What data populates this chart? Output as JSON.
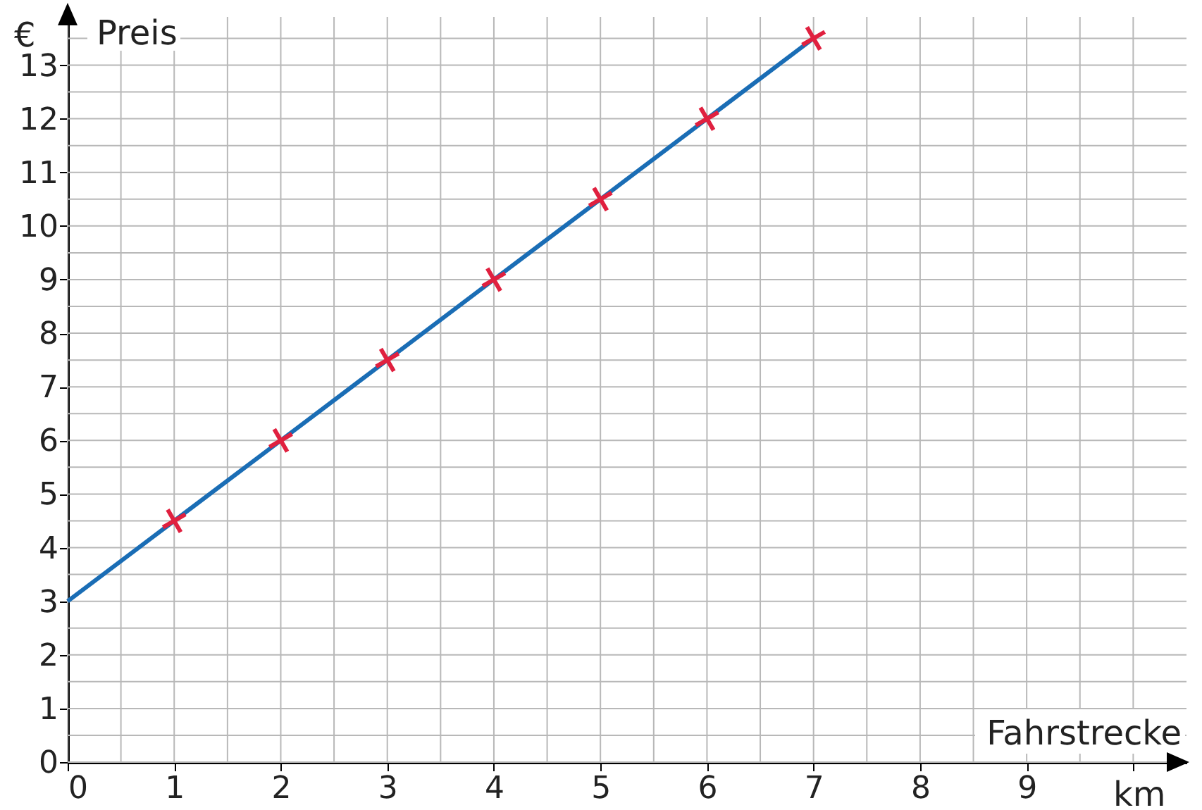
{
  "chart_data": {
    "type": "line",
    "xlabel": "Fahrstrecke",
    "ylabel": "Preis",
    "annotations": [
      "€",
      "km"
    ],
    "series": [
      {
        "color": "#1a6db5",
        "marker": "none",
        "x": [
          0,
          1,
          2,
          3,
          4,
          5,
          6,
          7
        ],
        "values": [
          3,
          4.5,
          6,
          7.5,
          9,
          10.5,
          12,
          13.5
        ]
      },
      {
        "type": "scatter",
        "color": "#e0203f",
        "marker": "cross",
        "x": [
          1,
          2,
          3,
          4,
          5,
          6,
          7
        ],
        "values": [
          4.5,
          6,
          7.5,
          9,
          10.5,
          12,
          13.5
        ]
      }
    ],
    "xlim": [
      0,
      10.5
    ],
    "ylim": [
      0,
      13.9
    ],
    "xticks": [
      0,
      {
        "value": 0.5,
        "label": null
      },
      1,
      {
        "value": 1.5,
        "label": null
      },
      2,
      {
        "value": 2.5,
        "label": null
      },
      3,
      {
        "value": 3.5,
        "label": null
      },
      4,
      {
        "value": 4.5,
        "label": null
      },
      5,
      {
        "value": 5.5,
        "label": null
      },
      6,
      {
        "value": 6.5,
        "label": null
      },
      7,
      {
        "value": 7.5,
        "label": null
      },
      8,
      {
        "value": 8.5,
        "label": null
      },
      9,
      {
        "value": 9.5,
        "label": null
      },
      {
        "value": 10,
        "label": null
      }
    ],
    "yticks": [
      0,
      {
        "value": 0.5,
        "label": null
      },
      1,
      {
        "value": 1.5,
        "label": null
      },
      2,
      {
        "value": 2.5,
        "label": null
      },
      3,
      {
        "value": 3.5,
        "label": null
      },
      4,
      {
        "value": 4.5,
        "label": null
      },
      5,
      {
        "value": 5.5,
        "label": null
      },
      6,
      {
        "value": 6.5,
        "label": null
      },
      7,
      {
        "value": 7.5,
        "label": null
      },
      8,
      {
        "value": 8.5,
        "label": null
      },
      9,
      {
        "value": 9.5,
        "label": null
      },
      10,
      {
        "value": 10.5,
        "label": null
      },
      11,
      {
        "value": 11.5,
        "label": null
      },
      12,
      {
        "value": 12.5,
        "label": null
      },
      13,
      {
        "value": 13.5,
        "label": null
      }
    ],
    "grid": true
  }
}
